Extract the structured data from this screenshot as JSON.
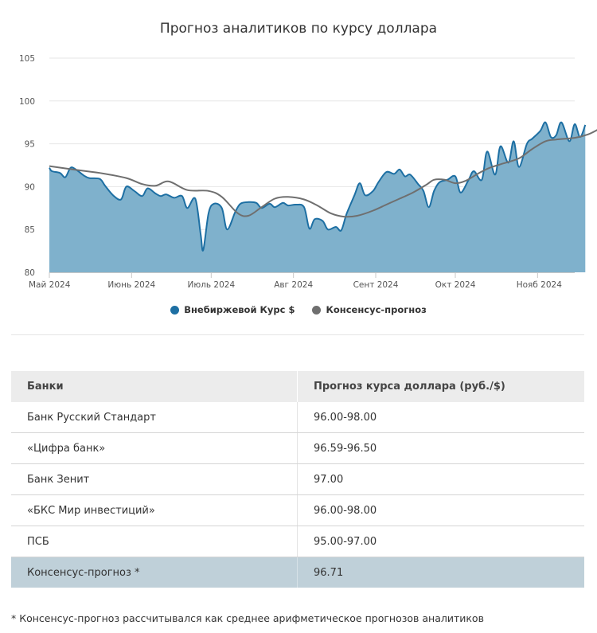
{
  "chart_data": {
    "type": "area",
    "title": "Прогноз аналитиков по курсу доллара",
    "ylim": [
      80,
      105
    ],
    "y_ticks": [
      "80",
      "85",
      "90",
      "95",
      "100",
      "105"
    ],
    "x_range": [
      "2024-05-01",
      "2024-11-15"
    ],
    "x_ticks": [
      {
        "label": "Май 2024",
        "date": "2024-05-01"
      },
      {
        "label": "Июнь 2024",
        "date": "2024-06-01"
      },
      {
        "label": "Июль 2024",
        "date": "2024-07-01"
      },
      {
        "label": "Авг 2024",
        "date": "2024-08-01"
      },
      {
        "label": "Сент 2024",
        "date": "2024-09-01"
      },
      {
        "label": "Окт 2024",
        "date": "2024-10-01"
      },
      {
        "label": "Нояб 2024",
        "date": "2024-11-01"
      }
    ],
    "grid": "horizontal",
    "legend_position": "bottom",
    "series": [
      {
        "name": "Внебиржевой Курс $",
        "type": "area",
        "color": "#1d6fa3",
        "fill": "#7fb1cc",
        "points": [
          [
            "2024-05-01",
            92.2
          ],
          [
            "2024-05-02",
            91.8
          ],
          [
            "2024-05-05",
            91.6
          ],
          [
            "2024-05-07",
            91.1
          ],
          [
            "2024-05-09",
            92.2
          ],
          [
            "2024-05-11",
            92.0
          ],
          [
            "2024-05-14",
            91.3
          ],
          [
            "2024-05-16",
            91.0
          ],
          [
            "2024-05-20",
            90.9
          ],
          [
            "2024-05-22",
            90.1
          ],
          [
            "2024-05-25",
            89.0
          ],
          [
            "2024-05-28",
            88.5
          ],
          [
            "2024-05-30",
            90.0
          ],
          [
            "2024-06-02",
            89.5
          ],
          [
            "2024-06-05",
            88.9
          ],
          [
            "2024-06-07",
            89.8
          ],
          [
            "2024-06-10",
            89.2
          ],
          [
            "2024-06-12",
            88.9
          ],
          [
            "2024-06-14",
            89.1
          ],
          [
            "2024-06-17",
            88.7
          ],
          [
            "2024-06-20",
            88.9
          ],
          [
            "2024-06-22",
            87.5
          ],
          [
            "2024-06-25",
            88.6
          ],
          [
            "2024-06-27",
            84.5
          ],
          [
            "2024-06-28",
            82.6
          ],
          [
            "2024-06-30",
            86.9
          ],
          [
            "2024-07-02",
            88.0
          ],
          [
            "2024-07-05",
            87.5
          ],
          [
            "2024-07-07",
            85.0
          ],
          [
            "2024-07-10",
            87.0
          ],
          [
            "2024-07-12",
            88.0
          ],
          [
            "2024-07-15",
            88.2
          ],
          [
            "2024-07-18",
            88.1
          ],
          [
            "2024-07-20",
            87.5
          ],
          [
            "2024-07-23",
            88.0
          ],
          [
            "2024-07-25",
            87.6
          ],
          [
            "2024-07-28",
            88.1
          ],
          [
            "2024-07-30",
            87.8
          ],
          [
            "2024-08-02",
            87.9
          ],
          [
            "2024-08-05",
            87.6
          ],
          [
            "2024-08-07",
            85.1
          ],
          [
            "2024-08-09",
            86.2
          ],
          [
            "2024-08-12",
            86.0
          ],
          [
            "2024-08-14",
            85.0
          ],
          [
            "2024-08-17",
            85.3
          ],
          [
            "2024-08-19",
            84.9
          ],
          [
            "2024-08-21",
            86.8
          ],
          [
            "2024-08-24",
            89.0
          ],
          [
            "2024-08-26",
            90.4
          ],
          [
            "2024-08-28",
            89.0
          ],
          [
            "2024-08-31",
            89.5
          ],
          [
            "2024-09-02",
            90.5
          ],
          [
            "2024-09-05",
            91.7
          ],
          [
            "2024-09-08",
            91.5
          ],
          [
            "2024-09-10",
            92.0
          ],
          [
            "2024-09-12",
            91.2
          ],
          [
            "2024-09-14",
            91.4
          ],
          [
            "2024-09-17",
            90.3
          ],
          [
            "2024-09-19",
            89.5
          ],
          [
            "2024-09-21",
            87.6
          ],
          [
            "2024-09-23",
            89.5
          ],
          [
            "2024-09-25",
            90.5
          ],
          [
            "2024-09-28",
            90.8
          ],
          [
            "2024-10-01",
            91.2
          ],
          [
            "2024-10-03",
            89.3
          ],
          [
            "2024-10-06",
            90.8
          ],
          [
            "2024-10-08",
            91.8
          ],
          [
            "2024-10-11",
            90.8
          ],
          [
            "2024-10-13",
            94.1
          ],
          [
            "2024-10-16",
            91.4
          ],
          [
            "2024-10-18",
            94.7
          ],
          [
            "2024-10-21",
            92.8
          ],
          [
            "2024-10-23",
            95.3
          ],
          [
            "2024-10-25",
            92.3
          ],
          [
            "2024-10-28",
            95.0
          ],
          [
            "2024-10-30",
            95.6
          ],
          [
            "2024-11-02",
            96.5
          ],
          [
            "2024-11-04",
            97.5
          ],
          [
            "2024-11-06",
            95.8
          ],
          [
            "2024-11-08",
            96.0
          ],
          [
            "2024-11-10",
            97.5
          ],
          [
            "2024-11-13",
            95.3
          ],
          [
            "2024-11-15",
            97.3
          ],
          [
            "2024-11-17",
            95.8
          ],
          [
            "2024-11-19",
            97.2
          ]
        ]
      },
      {
        "name": "Консенсус-прогноз",
        "type": "line",
        "color": "#6f6f6f",
        "points": [
          [
            "2024-05-01",
            92.4
          ],
          [
            "2024-05-10",
            92.0
          ],
          [
            "2024-05-20",
            91.6
          ],
          [
            "2024-05-30",
            91.0
          ],
          [
            "2024-06-05",
            90.3
          ],
          [
            "2024-06-10",
            90.1
          ],
          [
            "2024-06-15",
            90.6
          ],
          [
            "2024-06-22",
            89.6
          ],
          [
            "2024-06-30",
            89.5
          ],
          [
            "2024-07-05",
            88.8
          ],
          [
            "2024-07-11",
            86.9
          ],
          [
            "2024-07-15",
            86.6
          ],
          [
            "2024-07-20",
            87.6
          ],
          [
            "2024-07-25",
            88.6
          ],
          [
            "2024-07-30",
            88.8
          ],
          [
            "2024-08-05",
            88.5
          ],
          [
            "2024-08-10",
            87.8
          ],
          [
            "2024-08-15",
            86.9
          ],
          [
            "2024-08-20",
            86.5
          ],
          [
            "2024-08-25",
            86.6
          ],
          [
            "2024-08-31",
            87.2
          ],
          [
            "2024-09-05",
            87.9
          ],
          [
            "2024-09-10",
            88.6
          ],
          [
            "2024-09-15",
            89.3
          ],
          [
            "2024-09-20",
            90.2
          ],
          [
            "2024-09-23",
            90.8
          ],
          [
            "2024-09-27",
            90.8
          ],
          [
            "2024-10-01",
            90.4
          ],
          [
            "2024-10-05",
            90.7
          ],
          [
            "2024-10-10",
            91.6
          ],
          [
            "2024-10-14",
            92.2
          ],
          [
            "2024-10-19",
            92.7
          ],
          [
            "2024-10-25",
            93.3
          ],
          [
            "2024-10-30",
            94.4
          ],
          [
            "2024-11-04",
            95.3
          ],
          [
            "2024-11-08",
            95.5
          ],
          [
            "2024-11-15",
            95.7
          ],
          [
            "2024-11-20",
            96.1
          ],
          [
            "2024-11-24",
            96.7
          ]
        ]
      }
    ]
  },
  "legend": [
    {
      "name": "Внебиржевой Курс $",
      "color": "#1d6fa3"
    },
    {
      "name": "Консенсус-прогноз",
      "color": "#6f6f6f"
    }
  ],
  "table": {
    "headers": [
      "Банки",
      "Прогноз курса доллара (руб./$)"
    ],
    "rows": [
      {
        "bank": "Банк Русский Стандарт",
        "value": "96.00-98.00"
      },
      {
        "bank": "«Цифра банк»",
        "value": "96.59-96.50"
      },
      {
        "bank": "Банк Зенит",
        "value": "97.00"
      },
      {
        "bank": "«БКС Мир инвестиций»",
        "value": "96.00-98.00"
      },
      {
        "bank": "ПСБ",
        "value": "95.00-97.00"
      },
      {
        "bank": "Консенсус-прогноз *",
        "value": "96.71",
        "highlight": true
      }
    ]
  },
  "footnote": "* Консенсус-прогноз рассчитывался как среднее арифметическое прогнозов аналитиков"
}
